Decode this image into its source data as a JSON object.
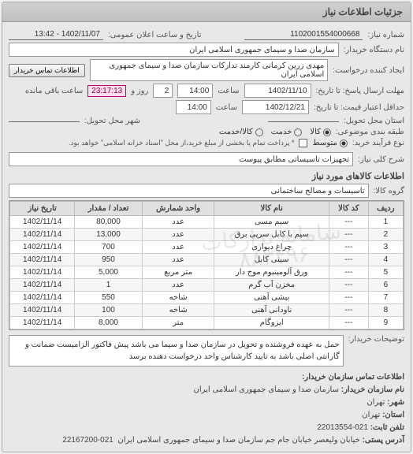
{
  "panel_title": "جزئیات اطلاعات نیاز",
  "header": {
    "req_no_label": "شماره نیاز:",
    "req_no": "1102001554000668",
    "announce_label": "تاریخ و ساعت اعلان عمومی:",
    "announce_value": "1402/11/07 - 13:42"
  },
  "buyer": {
    "org_label": "نام دستگاه خریدار:",
    "org_value": "سازمان صدا و سیمای جمهوری اسلامی ایران",
    "requester_label": "ایجاد کننده درخواست:",
    "requester_value": "مهدی زرین کرمانی کارمند تدارکات سازمان صدا و سیمای جمهوری اسلامی ایران",
    "contact_btn": "اطلاعات تماس خریدار"
  },
  "dates": {
    "reply_deadline_label": "مهلت ارسال پاسخ: تا تاریخ:",
    "reply_deadline_date": "1402/11/10",
    "time_label": "ساعت",
    "reply_deadline_time": "14:00",
    "days_remaining_val": "2",
    "days_remaining_label": "روز و",
    "time_remaining": "23:17:13",
    "time_remaining_label": "ساعت باقی مانده",
    "price_validity_label": "حداقل اعتبار قیمت: تا تاریخ:",
    "price_validity_date": "1402/12/21",
    "price_validity_time": "14:00"
  },
  "delivery": {
    "province_label": "استان محل تحویل:",
    "city_label": "شهر محل تحویل:"
  },
  "budget": {
    "classify_label": "طبقه بندی موضوعی:",
    "opt_goods": "کالا",
    "opt_service": "خدمت",
    "opt_both": "کالا/خدمت",
    "selected": "goods"
  },
  "purchase_type": {
    "label": "نوع فرآیند خرید:",
    "opt_medium": "متوسط",
    "hint": "* پرداخت تمام یا بخشی از مبلغ خرید،از محل \"اسناد خزانه اسلامی\" خواهد بود.",
    "selected": "medium"
  },
  "need_desc": {
    "label": "شرح کلی نیاز:",
    "value": "تجهیزات تاسیساتی مطابق پیوست"
  },
  "goods_section": {
    "title": "اطلاعات کالاهای مورد نیاز",
    "group_label": "گروه کالا:",
    "group_value": "تاسیسات و مصالح ساختمانی"
  },
  "table": {
    "columns": [
      "ردیف",
      "کد کالا",
      "نام کالا",
      "واحد شمارش",
      "تعداد / مقدار",
      "تاریخ نیاز"
    ],
    "rows": [
      [
        "1",
        "---",
        "سیم مسی",
        "عدد",
        "80,000",
        "1402/11/14"
      ],
      [
        "2",
        "---",
        "سیم با کابل سرپی برق",
        "عدد",
        "13,000",
        "1402/11/14"
      ],
      [
        "3",
        "---",
        "چراغ دیواری",
        "عدد",
        "700",
        "1402/11/14"
      ],
      [
        "4",
        "---",
        "سینی کابل",
        "عدد",
        "950",
        "1402/11/14"
      ],
      [
        "5",
        "---",
        "ورق آلومینیوم موج دار",
        "متر مربع",
        "5,000",
        "1402/11/14"
      ],
      [
        "6",
        "---",
        "مخزن آب گرم",
        "عدد",
        "1",
        "1402/11/14"
      ],
      [
        "7",
        "---",
        "بیشی آهنی",
        "شاخه",
        "550",
        "1402/11/14"
      ],
      [
        "8",
        "---",
        "ناودانی آهنی",
        "شاخه",
        "100",
        "1402/11/14"
      ],
      [
        "9",
        "---",
        "ایزوگام",
        "متر",
        "8,000",
        "1402/11/14"
      ]
    ]
  },
  "notes": {
    "label": "توضیحات خریدار:",
    "text": "حمل به عهده فروشنده و تحویل در سازمان صدا و سیما می باشد پیش فاکتور الزامیست ضمانت و گارانتی اصلی باشد به تایید کارشناس واحد درخواست دهنده برسد"
  },
  "contact": {
    "title": "اطلاعات تماس سازمان خریدار:",
    "org_label": "نام سازمان خریدار:",
    "org": "سازمان صدا و سیمای جمهوری اسلامی ایران",
    "city_label": "شهر:",
    "city": "تهران",
    "province_label": "استان:",
    "province": "تهران",
    "phone_label": "تلفن ثابت:",
    "phone": "021-22013554",
    "postal_label": "آدرس پستی:",
    "postal": "خیابان ولیعصر خیابان جام جم سازمان صدا و سیمای جمهوری اسلامی ایران",
    "postal_phone": "021-22167200"
  },
  "watermark1": "سامانه تدارکات",
  "watermark2": "۸۸۳۴۹۶"
}
